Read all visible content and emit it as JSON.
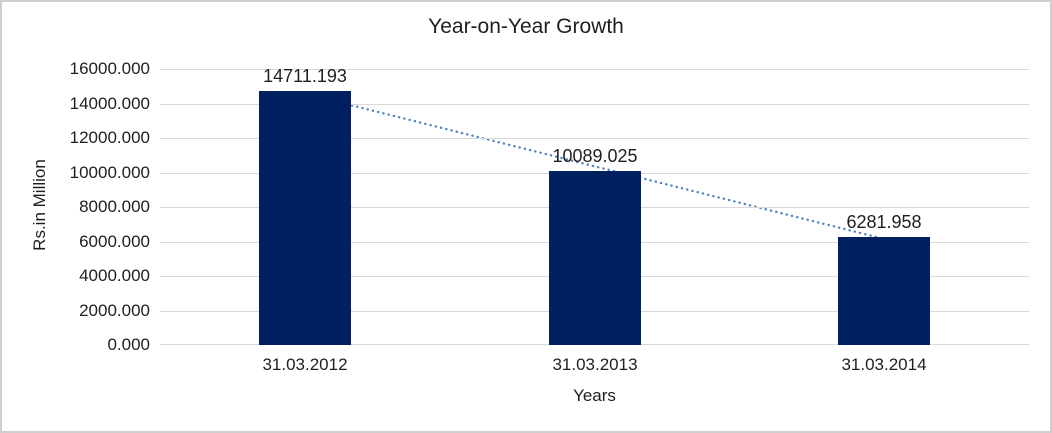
{
  "window": {
    "background": "#ffffff",
    "border_color": "#cfcfcf"
  },
  "chart_data": {
    "type": "bar",
    "title": "Year-on-Year Growth",
    "categories": [
      "31.03.2012",
      "31.03.2013",
      "31.03.2014"
    ],
    "values": [
      14711.193,
      10089.025,
      6281.958
    ],
    "data_labels": [
      "14711.193",
      "10089.025",
      "6281.958"
    ],
    "xlabel": "Years",
    "ylabel": "Rs.in Million",
    "ylim": [
      0,
      16000
    ],
    "ytick_step": 2000,
    "ytick_labels": [
      "0.000",
      "2000.000",
      "4000.000",
      "6000.000",
      "8000.000",
      "10000.000",
      "12000.000",
      "14000.000",
      "16000.000"
    ],
    "grid": true,
    "legend": "none",
    "bar_color": "#002060",
    "gridline_color": "#d9d9d9",
    "text_color": "#1f1f1f",
    "trendline": {
      "type": "linear",
      "style": "dotted",
      "color": "#4F81BD"
    }
  }
}
